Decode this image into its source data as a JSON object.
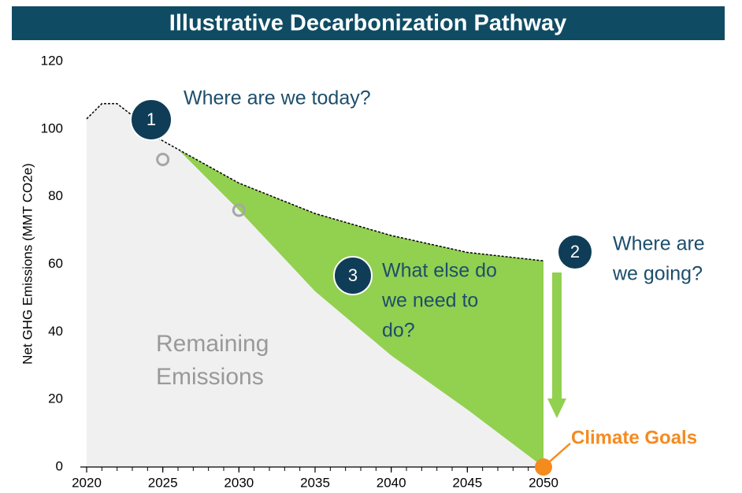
{
  "chart_data": {
    "type": "area",
    "title": "Illustrative Decarbonization Pathway",
    "ylabel": "Net GHG Emissions (MMT CO2e)",
    "xlim": [
      2020,
      2050
    ],
    "xticks": [
      2020,
      2025,
      2030,
      2035,
      2040,
      2045,
      2050
    ],
    "ylim": [
      0,
      120
    ],
    "yticks": [
      0,
      20,
      40,
      60,
      80,
      100,
      120
    ],
    "trajectory": {
      "x": [
        2020,
        2021,
        2022,
        2023,
        2024,
        2025,
        2026,
        2028,
        2030,
        2035,
        2040,
        2045,
        2050
      ],
      "values": [
        103,
        107.5,
        107.5,
        104,
        99,
        96.5,
        94,
        89,
        84,
        75,
        68.5,
        63.5,
        61
      ],
      "color": "#000000",
      "fill": "#f0f0f0"
    },
    "pathway": {
      "x": [
        2026,
        2030,
        2035,
        2040,
        2045,
        2050
      ],
      "values": [
        94,
        76,
        52,
        33,
        17,
        0
      ],
      "fill": "#92d050"
    },
    "points": {
      "x": [
        2025,
        2030
      ],
      "values": [
        91,
        76
      ],
      "color": "#a6a6a6"
    },
    "goal": {
      "x": 2050,
      "value": 0,
      "label": "Climate Goals",
      "color": "#f58a1f"
    },
    "annotations": [
      {
        "number": "1",
        "lines": [
          "Where are we today?"
        ]
      },
      {
        "number": "2",
        "lines": [
          "Where are",
          "we going?"
        ]
      },
      {
        "number": "3",
        "lines": [
          "What else do",
          "we need to",
          "do?"
        ]
      }
    ],
    "area_label": [
      "Remaining",
      "Emissions"
    ]
  }
}
